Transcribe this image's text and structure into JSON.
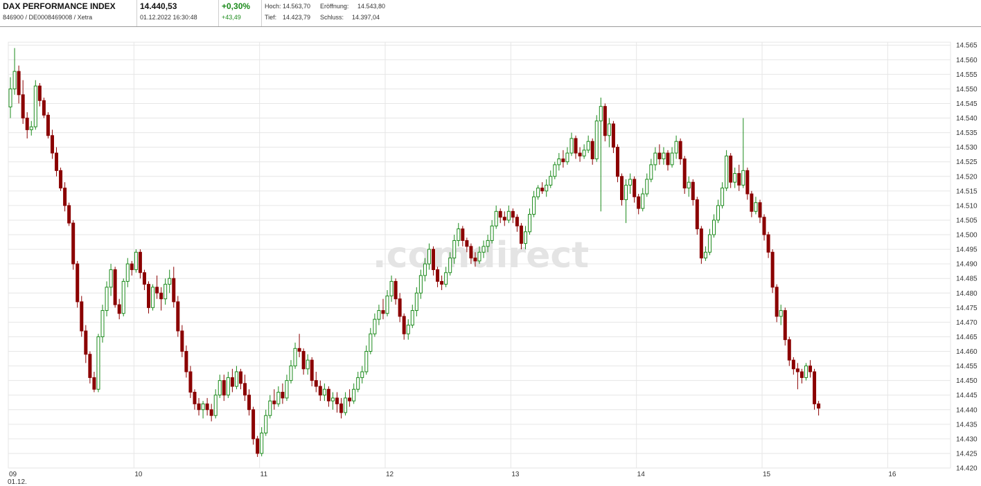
{
  "header": {
    "title": "DAX PERFORMANCE INDEX",
    "identifiers": "846900 / DE0008469008 / Xetra",
    "last_price": "14.440,53",
    "datetime": "01.12.2022 16:30:48",
    "change_pct": "+0,30%",
    "change_abs": "+43,49",
    "high_label": "Hoch:",
    "high_value": "14.563,70",
    "open_label": "Eröffnung:",
    "open_value": "14.543,80",
    "low_label": "Tief:",
    "low_value": "14.423,79",
    "close_label": "Schluss:",
    "close_value": "14.397,04"
  },
  "watermark": ".comdirect",
  "colors": {
    "up": "#1a8a1a",
    "down": "#8b0000",
    "grid": "#e6e6e6",
    "positive_text": "#1a8a1a"
  },
  "chart_data": {
    "type": "candlestick",
    "x_unit": "hour",
    "x_ticks": [
      {
        "value": 9,
        "label": "09",
        "sublabel": "01.12."
      },
      {
        "value": 10,
        "label": "10"
      },
      {
        "value": 11,
        "label": "11"
      },
      {
        "value": 12,
        "label": "12"
      },
      {
        "value": 13,
        "label": "13"
      },
      {
        "value": 14,
        "label": "14"
      },
      {
        "value": 15,
        "label": "15"
      },
      {
        "value": 16,
        "label": "16"
      }
    ],
    "y_ticks": [
      "14.565",
      "14.560",
      "14.555",
      "14.550",
      "14.545",
      "14.540",
      "14.535",
      "14.530",
      "14.525",
      "14.520",
      "14.515",
      "14.510",
      "14.505",
      "14.500",
      "14.495",
      "14.490",
      "14.485",
      "14.480",
      "14.475",
      "14.470",
      "14.465",
      "14.460",
      "14.455",
      "14.450",
      "14.445",
      "14.440",
      "14.435",
      "14.430",
      "14.425",
      "14.420"
    ],
    "ylim": [
      14420,
      14566
    ],
    "xlim": [
      9.0,
      16.5
    ],
    "grid": true,
    "y_axis_side": "right",
    "interval_minutes": 2,
    "ohlc": [
      [
        14543.8,
        14554,
        14540,
        14550
      ],
      [
        14550,
        14564,
        14548,
        14556
      ],
      [
        14556,
        14558,
        14545,
        14548
      ],
      [
        14548,
        14553,
        14538,
        14540
      ],
      [
        14540,
        14542,
        14533,
        14536
      ],
      [
        14536,
        14539,
        14534,
        14537
      ],
      [
        14537,
        14553,
        14536,
        14551
      ],
      [
        14551,
        14552,
        14544,
        14546
      ],
      [
        14546,
        14547,
        14540,
        14541
      ],
      [
        14541,
        14542,
        14533,
        14534
      ],
      [
        14534,
        14536,
        14526,
        14528
      ],
      [
        14528,
        14530,
        14520,
        14522
      ],
      [
        14522,
        14523,
        14515,
        14516
      ],
      [
        14516,
        14518,
        14508,
        14510
      ],
      [
        14510,
        14511,
        14503,
        14504
      ],
      [
        14504,
        14505,
        14488,
        14490
      ],
      [
        14490,
        14491,
        14475,
        14477
      ],
      [
        14477,
        14479,
        14465,
        14467
      ],
      [
        14467,
        14469,
        14456,
        14459
      ],
      [
        14459,
        14460,
        14449,
        14451
      ],
      [
        14451,
        14453,
        14446,
        14447
      ],
      [
        14447,
        14466,
        14446,
        14465
      ],
      [
        14465,
        14476,
        14463,
        14474
      ],
      [
        14474,
        14484,
        14472,
        14482
      ],
      [
        14482,
        14490,
        14479,
        14488
      ],
      [
        14488,
        14489,
        14475,
        14476
      ],
      [
        14476,
        14478,
        14471,
        14473
      ],
      [
        14473,
        14485,
        14472,
        14484
      ],
      [
        14484,
        14492,
        14482,
        14490
      ],
      [
        14490,
        14491,
        14486,
        14488
      ],
      [
        14488,
        14495,
        14487,
        14494
      ],
      [
        14494,
        14495,
        14485,
        14487
      ],
      [
        14487,
        14488,
        14481,
        14483
      ],
      [
        14483,
        14484,
        14473,
        14475
      ],
      [
        14475,
        14483,
        14474,
        14482
      ],
      [
        14482,
        14486,
        14478,
        14480
      ],
      [
        14480,
        14482,
        14474,
        14478
      ],
      [
        14478,
        14485,
        14476,
        14483
      ],
      [
        14483,
        14488,
        14480,
        14485
      ],
      [
        14485,
        14489,
        14475,
        14477
      ],
      [
        14477,
        14479,
        14465,
        14467
      ],
      [
        14467,
        14469,
        14458,
        14460
      ],
      [
        14460,
        14462,
        14451,
        14453
      ],
      [
        14453,
        14455,
        14444,
        14446
      ],
      [
        14446,
        14447,
        14440,
        14442
      ],
      [
        14442,
        14444,
        14438,
        14440
      ],
      [
        14440,
        14443,
        14437,
        14442
      ],
      [
        14442,
        14444,
        14438,
        14440
      ],
      [
        14440,
        14442,
        14436,
        14438
      ],
      [
        14438,
        14447,
        14437,
        14445
      ],
      [
        14445,
        14452,
        14444,
        14450
      ],
      [
        14450,
        14452,
        14443,
        14445
      ],
      [
        14445,
        14453,
        14444,
        14451
      ],
      [
        14451,
        14454,
        14446,
        14448
      ],
      [
        14448,
        14455,
        14447,
        14453
      ],
      [
        14453,
        14454,
        14447,
        14449
      ],
      [
        14449,
        14452,
        14443,
        14445
      ],
      [
        14445,
        14447,
        14438,
        14440
      ],
      [
        14440,
        14441,
        14428,
        14430
      ],
      [
        14430,
        14431,
        14423.79,
        14425
      ],
      [
        14425,
        14434,
        14424,
        14432
      ],
      [
        14432,
        14440,
        14431,
        14438
      ],
      [
        14438,
        14445,
        14437,
        14443
      ],
      [
        14443,
        14447,
        14440,
        14442
      ],
      [
        14442,
        14448,
        14441,
        14446
      ],
      [
        14446,
        14449,
        14442,
        14444
      ],
      [
        14444,
        14452,
        14443,
        14450
      ],
      [
        14450,
        14457,
        14449,
        14455
      ],
      [
        14455,
        14463,
        14454,
        14461
      ],
      [
        14461,
        14466,
        14458,
        14460
      ],
      [
        14460,
        14461,
        14452,
        14454
      ],
      [
        14454,
        14459,
        14452,
        14457
      ],
      [
        14457,
        14458,
        14448,
        14450
      ],
      [
        14450,
        14453,
        14446,
        14448
      ],
      [
        14448,
        14450,
        14443,
        14445
      ],
      [
        14445,
        14449,
        14443,
        14447
      ],
      [
        14447,
        14448,
        14441,
        14443
      ],
      [
        14443,
        14446,
        14440,
        14444
      ],
      [
        14444,
        14446,
        14439,
        14442
      ],
      [
        14442,
        14444,
        14437,
        14439
      ],
      [
        14439,
        14446,
        14438,
        14444
      ],
      [
        14444,
        14447,
        14441,
        14443
      ],
      [
        14443,
        14449,
        14442,
        14447
      ],
      [
        14447,
        14453,
        14446,
        14451
      ],
      [
        14451,
        14455,
        14449,
        14453
      ],
      [
        14453,
        14462,
        14452,
        14460
      ],
      [
        14460,
        14468,
        14459,
        14466
      ],
      [
        14466,
        14473,
        14465,
        14471
      ],
      [
        14471,
        14476,
        14469,
        14474
      ],
      [
        14474,
        14478,
        14471,
        14473
      ],
      [
        14473,
        14481,
        14472,
        14479
      ],
      [
        14479,
        14486,
        14477,
        14484
      ],
      [
        14484,
        14485,
        14476,
        14478
      ],
      [
        14478,
        14480,
        14470,
        14472
      ],
      [
        14472,
        14473,
        14464,
        14466
      ],
      [
        14466,
        14471,
        14464,
        14469
      ],
      [
        14469,
        14476,
        14468,
        14474
      ],
      [
        14474,
        14482,
        14472,
        14480
      ],
      [
        14480,
        14488,
        14478,
        14486
      ],
      [
        14486,
        14492,
        14484,
        14490
      ],
      [
        14490,
        14497,
        14488,
        14495
      ],
      [
        14495,
        14496,
        14486,
        14488
      ],
      [
        14488,
        14489,
        14482,
        14484
      ],
      [
        14484,
        14486,
        14481,
        14483
      ],
      [
        14483,
        14489,
        14482,
        14487
      ],
      [
        14487,
        14494,
        14486,
        14492
      ],
      [
        14492,
        14500,
        14490,
        14498
      ],
      [
        14498,
        14504,
        14496,
        14502
      ],
      [
        14502,
        14503,
        14496,
        14498
      ],
      [
        14498,
        14499,
        14494,
        14496
      ],
      [
        14496,
        14497,
        14490,
        14492
      ],
      [
        14492,
        14494,
        14489,
        14491
      ],
      [
        14491,
        14496,
        14490,
        14494
      ],
      [
        14494,
        14498,
        14492,
        14496
      ],
      [
        14496,
        14500,
        14494,
        14498
      ],
      [
        14498,
        14505,
        14497,
        14503
      ],
      [
        14503,
        14510,
        14502,
        14508
      ],
      [
        14508,
        14509,
        14504,
        14506
      ],
      [
        14506,
        14508,
        14503,
        14505
      ],
      [
        14505,
        14510,
        14504,
        14508
      ],
      [
        14508,
        14509,
        14504,
        14506
      ],
      [
        14506,
        14507,
        14501,
        14503
      ],
      [
        14503,
        14504,
        14495,
        14497
      ],
      [
        14497,
        14503,
        14495,
        14501
      ],
      [
        14501,
        14509,
        14500,
        14507
      ],
      [
        14507,
        14515,
        14506,
        14513
      ],
      [
        14513,
        14517,
        14512,
        14516
      ],
      [
        14516,
        14518,
        14514,
        14515
      ],
      [
        14515,
        14519,
        14513,
        14517
      ],
      [
        14517,
        14522,
        14516,
        14520
      ],
      [
        14520,
        14525,
        14519,
        14524
      ],
      [
        14524,
        14528,
        14522,
        14526
      ],
      [
        14526,
        14529,
        14523,
        14525
      ],
      [
        14525,
        14530,
        14524,
        14528
      ],
      [
        14528,
        14535,
        14527,
        14533
      ],
      [
        14533,
        14534,
        14526,
        14528
      ],
      [
        14528,
        14530,
        14525,
        14527
      ],
      [
        14527,
        14531,
        14526,
        14529
      ],
      [
        14529,
        14534,
        14528,
        14532
      ],
      [
        14532,
        14533,
        14524,
        14526
      ],
      [
        14526,
        14541,
        14525,
        14539
      ],
      [
        14539,
        14547,
        14508,
        14544
      ],
      [
        14544,
        14545,
        14532,
        14534
      ],
      [
        14534,
        14540,
        14530,
        14538
      ],
      [
        14538,
        14539,
        14528,
        14530
      ],
      [
        14530,
        14531,
        14518,
        14520
      ],
      [
        14520,
        14521,
        14510,
        14512
      ],
      [
        14512,
        14519,
        14504,
        14517
      ],
      [
        14517,
        14521,
        14514,
        14519
      ],
      [
        14519,
        14520,
        14511,
        14513
      ],
      [
        14513,
        14514,
        14507,
        14509
      ],
      [
        14509,
        14516,
        14508,
        14514
      ],
      [
        14514,
        14521,
        14513,
        14519
      ],
      [
        14519,
        14526,
        14518,
        14524
      ],
      [
        14524,
        14530,
        14522,
        14528
      ],
      [
        14528,
        14531,
        14524,
        14526
      ],
      [
        14526,
        14530,
        14524,
        14528
      ],
      [
        14528,
        14529,
        14522,
        14524
      ],
      [
        14524,
        14530,
        14523,
        14528
      ],
      [
        14528,
        14534,
        14526,
        14532
      ],
      [
        14532,
        14533,
        14524,
        14526
      ],
      [
        14526,
        14527,
        14514,
        14516
      ],
      [
        14516,
        14520,
        14513,
        14518
      ],
      [
        14518,
        14519,
        14510,
        14512
      ],
      [
        14512,
        14513,
        14500,
        14502
      ],
      [
        14502,
        14503,
        14490,
        14492
      ],
      [
        14492,
        14496,
        14491,
        14494
      ],
      [
        14494,
        14502,
        14493,
        14500
      ],
      [
        14500,
        14507,
        14499,
        14505
      ],
      [
        14505,
        14512,
        14504,
        14510
      ],
      [
        14510,
        14518,
        14509,
        14516
      ],
      [
        14516,
        14529,
        14515,
        14527
      ],
      [
        14527,
        14528,
        14516,
        14518
      ],
      [
        14518,
        14523,
        14516,
        14521
      ],
      [
        14521,
        14524,
        14515,
        14517
      ],
      [
        14517,
        14540,
        14516,
        14522
      ],
      [
        14522,
        14523,
        14512,
        14514
      ],
      [
        14514,
        14515,
        14506,
        14508
      ],
      [
        14508,
        14513,
        14507,
        14511
      ],
      [
        14511,
        14512,
        14504,
        14506
      ],
      [
        14506,
        14507,
        14498,
        14500
      ],
      [
        14500,
        14501,
        14492,
        14494
      ],
      [
        14494,
        14495,
        14480,
        14482
      ],
      [
        14482,
        14483,
        14470,
        14472
      ],
      [
        14472,
        14476,
        14469,
        14474
      ],
      [
        14474,
        14475,
        14462,
        14464
      ],
      [
        14464,
        14465,
        14455,
        14457
      ],
      [
        14457,
        14458,
        14452,
        14454
      ],
      [
        14454,
        14456,
        14447,
        14453
      ],
      [
        14453,
        14454,
        14449,
        14451
      ],
      [
        14451,
        14456,
        14450,
        14455
      ],
      [
        14455,
        14457,
        14451,
        14453
      ],
      [
        14453,
        14454,
        14440,
        14442
      ],
      [
        14442,
        14443,
        14438,
        14440.53
      ]
    ]
  }
}
